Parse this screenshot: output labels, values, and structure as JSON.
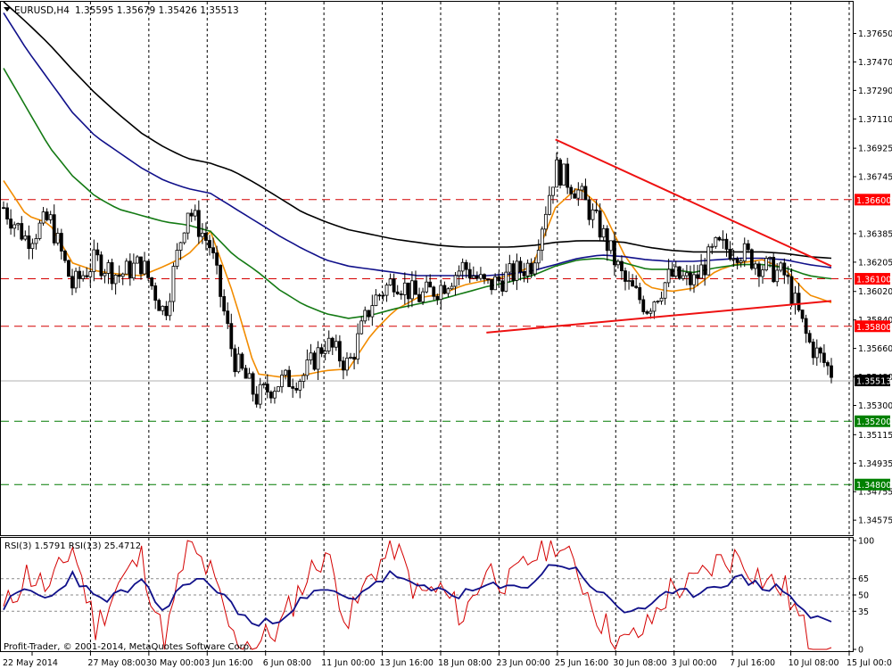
{
  "header": {
    "symbol_label": "EURUSD,H4",
    "ohlc": "1.35595 1.35679 1.35426 1.35513"
  },
  "rsi_panel": {
    "label": "RSI(3) 1.5791  RSI(13) 25.4712",
    "levels": [
      "100",
      "65",
      "50",
      "35",
      "0"
    ]
  },
  "copyright": "Profit-Trader, © 2001-2014, MetaQuotes Software Corp.",
  "price_axis": {
    "ticks": [
      "1.37650",
      "1.37470",
      "1.37290",
      "1.37110",
      "1.36925",
      "1.36745",
      "1.36385",
      "1.36205",
      "1.36020",
      "1.35840",
      "1.35660",
      "1.35480",
      "1.35300",
      "1.35115",
      "1.34935",
      "1.34755",
      "1.34575"
    ],
    "current_price": "1.35513",
    "level_tags": [
      "1.36600",
      "1.36100",
      "1.35800",
      "1.35200",
      "1.34800"
    ]
  },
  "time_axis": {
    "labels": [
      "22 May 2014",
      "27 May 08:00",
      "30 May 00:00",
      "3 Jun 16:00",
      "6 Jun 08:00",
      "11 Jun 00:00",
      "13 Jun 16:00",
      "18 Jun 08:00",
      "23 Jun 00:00",
      "25 Jun 16:00",
      "30 Jun 08:00",
      "3 Jul 00:00",
      "7 Jul 16:00",
      "10 Jul 08:00",
      "15 Jul 00:00"
    ]
  },
  "colors": {
    "bull_body": "#ffffff",
    "bear_body": "#000000",
    "candle_outline": "#000000",
    "resistance_line": "#d40000",
    "support_line_green": "#007a00",
    "trend_line": "#ee1111",
    "ma_fast": "#f28c00",
    "ma_green": "#147a14",
    "ma_blue": "#10108a",
    "ma_black": "#000000",
    "rsi_fast": "#d40000",
    "rsi_slow": "#10108a",
    "tag_red": "#ff0000",
    "tag_green": "#008000"
  },
  "chart_data": {
    "type": "line",
    "title": "EURUSD,H4",
    "ylim": [
      1.3448,
      1.3785
    ],
    "horizontal_levels": [
      {
        "value": 1.366,
        "color": "red"
      },
      {
        "value": 1.361,
        "color": "red"
      },
      {
        "value": 1.358,
        "color": "red"
      },
      {
        "value": 1.352,
        "color": "green"
      },
      {
        "value": 1.348,
        "color": "green"
      }
    ],
    "price_series": {
      "name": "EURUSD close (approx.)",
      "x": [
        "22 May 2014",
        "23 May",
        "27 May 08:00",
        "28 May",
        "30 May 00:00",
        "2 Jun",
        "3 Jun 16:00",
        "5 Jun",
        "6 Jun 08:00",
        "9 Jun",
        "10 Jun",
        "11 Jun 00:00",
        "12 Jun",
        "13 Jun 16:00",
        "16 Jun",
        "17 Jun",
        "18 Jun 08:00",
        "19 Jun",
        "20 Jun",
        "23 Jun 00:00",
        "24 Jun",
        "25 Jun 16:00",
        "26 Jun",
        "27 Jun",
        "30 Jun 08:00",
        "1 Jul",
        "2 Jul",
        "3 Jul 00:00",
        "4 Jul",
        "7 Jul 16:00",
        "8 Jul",
        "9 Jul",
        "10 Jul 08:00",
        "11 Jul",
        "14 Jul",
        "15 Jul 00:00",
        "15 Jul"
      ],
      "values": [
        1.3655,
        1.3635,
        1.3648,
        1.3605,
        1.3622,
        1.3612,
        1.362,
        1.3588,
        1.3655,
        1.363,
        1.356,
        1.3535,
        1.3545,
        1.3548,
        1.357,
        1.3555,
        1.3595,
        1.361,
        1.3598,
        1.3605,
        1.3618,
        1.3605,
        1.3612,
        1.362,
        1.368,
        1.3665,
        1.364,
        1.3608,
        1.3592,
        1.3612,
        1.3608,
        1.363,
        1.3628,
        1.3618,
        1.3612,
        1.357,
        1.3551
      ]
    },
    "moving_averages": [
      {
        "name": "MA fast (orange)",
        "color": "#f28c00",
        "values": [
          1.3672,
          1.365,
          1.3645,
          1.362,
          1.3615,
          1.3613,
          1.3612,
          1.3618,
          1.3625,
          1.364,
          1.36,
          1.355,
          1.3548,
          1.3549,
          1.3552,
          1.3553,
          1.3575,
          1.359,
          1.3598,
          1.36,
          1.3606,
          1.3609,
          1.3612,
          1.3618,
          1.3655,
          1.3668,
          1.3655,
          1.3625,
          1.3605,
          1.3602,
          1.3604,
          1.3615,
          1.362,
          1.3622,
          1.3616,
          1.36,
          1.3595
        ]
      },
      {
        "name": "MA green",
        "color": "#147a14",
        "values": [
          1.3743,
          1.3718,
          1.3693,
          1.3675,
          1.3662,
          1.3654,
          1.365,
          1.3646,
          1.3644,
          1.364,
          1.3625,
          1.3615,
          1.3603,
          1.3594,
          1.3588,
          1.3585,
          1.3587,
          1.3591,
          1.3594,
          1.3597,
          1.3601,
          1.3605,
          1.3608,
          1.3612,
          1.3618,
          1.3622,
          1.3623,
          1.362,
          1.3616,
          1.3616,
          1.3614,
          1.3617,
          1.3619,
          1.3619,
          1.3617,
          1.3612,
          1.361
        ]
      },
      {
        "name": "MA blue",
        "color": "#10108a",
        "values": [
          1.3778,
          1.3755,
          1.3735,
          1.3715,
          1.37,
          1.369,
          1.368,
          1.3672,
          1.3667,
          1.3664,
          1.3655,
          1.3646,
          1.3637,
          1.3629,
          1.3622,
          1.3618,
          1.3616,
          1.3614,
          1.3612,
          1.3612,
          1.3612,
          1.3612,
          1.3613,
          1.3615,
          1.3619,
          1.3623,
          1.3625,
          1.3624,
          1.3622,
          1.3621,
          1.3621,
          1.3622,
          1.3623,
          1.3623,
          1.3622,
          1.3619,
          1.3617
        ]
      },
      {
        "name": "MA black",
        "color": "#000000",
        "values": [
          1.3785,
          1.3772,
          1.3758,
          1.3742,
          1.3727,
          1.3714,
          1.3702,
          1.3693,
          1.3686,
          1.3683,
          1.3678,
          1.367,
          1.3661,
          1.3652,
          1.3646,
          1.3641,
          1.3638,
          1.3635,
          1.3633,
          1.3631,
          1.363,
          1.363,
          1.363,
          1.3631,
          1.3633,
          1.3634,
          1.3634,
          1.3633,
          1.363,
          1.3628,
          1.3627,
          1.3627,
          1.3627,
          1.3627,
          1.3626,
          1.3624,
          1.3623
        ]
      }
    ],
    "trend_lines": [
      {
        "name": "descending resistance",
        "from": {
          "x": "30 Jun 08:00",
          "y": 1.3698
        },
        "to": {
          "x": "15 Jul",
          "y": 1.3618
        }
      },
      {
        "name": "ascending support",
        "from": {
          "x": "25 Jun 16:00",
          "y": 1.3576
        },
        "to": {
          "x": "15 Jul",
          "y": 1.3596
        }
      }
    ],
    "rsi": {
      "ylim": [
        0,
        100
      ],
      "levels": [
        100,
        65,
        50,
        35,
        0
      ],
      "series": [
        {
          "name": "RSI(3)",
          "color": "#d40000",
          "values": [
            35,
            70,
            55,
            95,
            20,
            60,
            85,
            5,
            95,
            70,
            10,
            5,
            20,
            60,
            90,
            25,
            70,
            95,
            50,
            55,
            30,
            75,
            60,
            85,
            100,
            70,
            25,
            5,
            20,
            55,
            60,
            80,
            85,
            65,
            55,
            10,
            1.6
          ]
        },
        {
          "name": "RSI(13)",
          "color": "#10108a",
          "values": [
            40,
            55,
            45,
            70,
            45,
            50,
            60,
            35,
            65,
            60,
            40,
            20,
            30,
            45,
            55,
            45,
            60,
            70,
            55,
            55,
            50,
            58,
            55,
            62,
            80,
            72,
            50,
            35,
            40,
            50,
            52,
            60,
            65,
            58,
            55,
            30,
            25.5
          ]
        }
      ]
    }
  }
}
